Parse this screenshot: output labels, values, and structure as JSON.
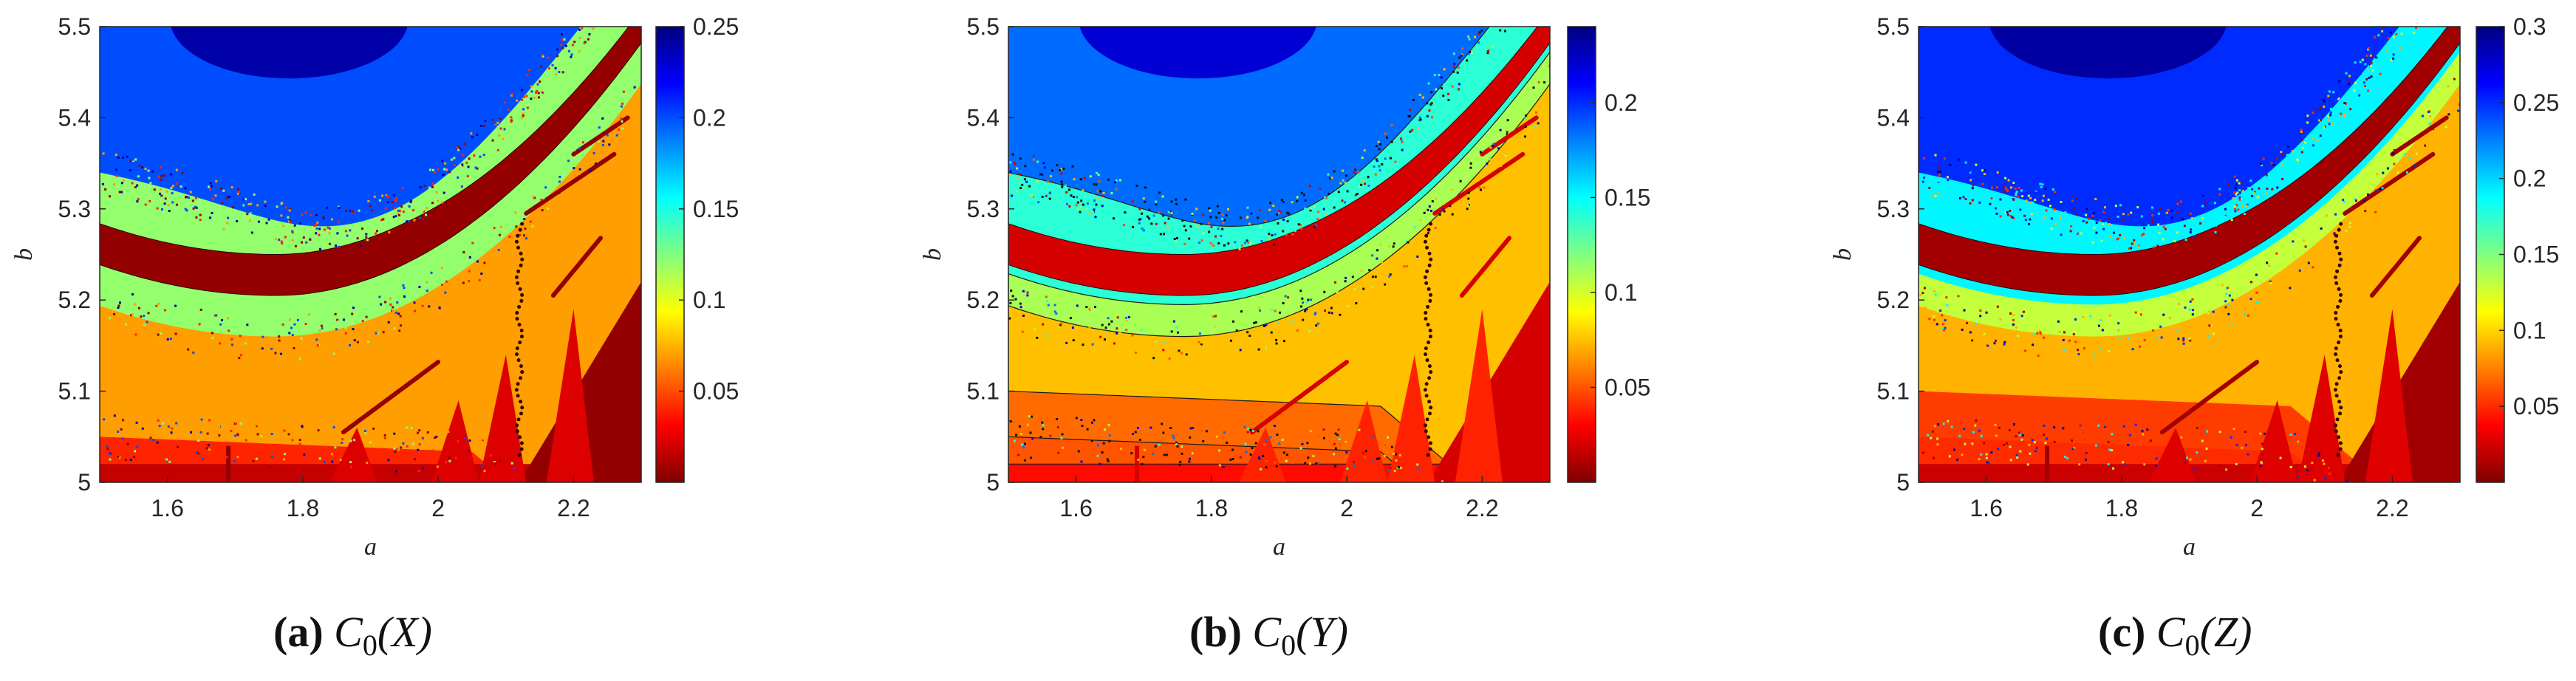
{
  "figure": {
    "type": "heatmap",
    "panels": [
      "a",
      "b",
      "c"
    ]
  },
  "colormap": {
    "name": "jet",
    "stops": [
      "#800000",
      "#ff0000",
      "#ff8000",
      "#ffff00",
      "#80ff80",
      "#00ffff",
      "#0080ff",
      "#0000ff",
      "#000080"
    ]
  },
  "chart_data": [
    {
      "type": "heatmap",
      "title_letter": "(a)",
      "title_func": "C",
      "title_sub": "0",
      "title_arg": "(X)",
      "xlabel": "a",
      "ylabel": "b",
      "xlim": [
        1.5,
        2.3
      ],
      "ylim": [
        5.0,
        5.5
      ],
      "xticks": [
        1.6,
        1.8,
        2.0,
        2.2
      ],
      "xtick_labels": [
        "1.6",
        "1.8",
        "2",
        "2.2"
      ],
      "yticks": [
        5.0,
        5.1,
        5.2,
        5.3,
        5.4,
        5.5
      ],
      "ytick_labels": [
        "5",
        "5.1",
        "5.2",
        "5.3",
        "5.4",
        "5.5"
      ],
      "colorbar": {
        "range": [
          0.0,
          0.25
        ],
        "ticks": [
          0.05,
          0.1,
          0.15,
          0.2,
          0.25
        ],
        "labels": [
          "0.05",
          "0.1",
          "0.15",
          "0.2",
          "0.25"
        ]
      },
      "levels": [
        0.005,
        0.04,
        0.07,
        0.12,
        0.2,
        0.24
      ],
      "contour_lines": false
    },
    {
      "type": "heatmap",
      "title_letter": "(b)",
      "title_func": "C",
      "title_sub": "0",
      "title_arg": "(Y)",
      "xlabel": "a",
      "ylabel": "b",
      "xlim": [
        1.5,
        2.3
      ],
      "ylim": [
        5.0,
        5.5
      ],
      "xticks": [
        1.6,
        1.8,
        2.0,
        2.2
      ],
      "xtick_labels": [
        "1.6",
        "1.8",
        "2",
        "2.2"
      ],
      "yticks": [
        5.0,
        5.1,
        5.2,
        5.3,
        5.4,
        5.5
      ],
      "ytick_labels": [
        "5",
        "5.1",
        "5.2",
        "5.3",
        "5.4",
        "5.5"
      ],
      "colorbar": {
        "range": [
          0.0,
          0.24
        ],
        "ticks": [
          0.05,
          0.1,
          0.15,
          0.2
        ],
        "labels": [
          "0.05",
          "0.1",
          "0.15",
          "0.2"
        ]
      },
      "levels": [
        0.02,
        0.05,
        0.075,
        0.11,
        0.14,
        0.185,
        0.22
      ],
      "contour_lines": true
    },
    {
      "type": "heatmap",
      "title_letter": "(c)",
      "title_func": "C",
      "title_sub": "0",
      "title_arg": "(Z)",
      "xlabel": "a",
      "ylabel": "b",
      "xlim": [
        1.5,
        2.3
      ],
      "ylim": [
        5.0,
        5.5
      ],
      "xticks": [
        1.6,
        1.8,
        2.0,
        2.2
      ],
      "xtick_labels": [
        "1.6",
        "1.8",
        "2",
        "2.2"
      ],
      "yticks": [
        5.0,
        5.1,
        5.2,
        5.3,
        5.4,
        5.5
      ],
      "ytick_labels": [
        "5",
        "5.1",
        "5.2",
        "5.3",
        "5.4",
        "5.5"
      ],
      "colorbar": {
        "range": [
          0.0,
          0.3
        ],
        "ticks": [
          0.05,
          0.1,
          0.15,
          0.2,
          0.25,
          0.3
        ],
        "labels": [
          "0.05",
          "0.1",
          "0.15",
          "0.2",
          "0.25",
          "0.3"
        ]
      },
      "levels": [
        0.01,
        0.05,
        0.09,
        0.13,
        0.19,
        0.25,
        0.29
      ],
      "contour_lines": false
    }
  ]
}
